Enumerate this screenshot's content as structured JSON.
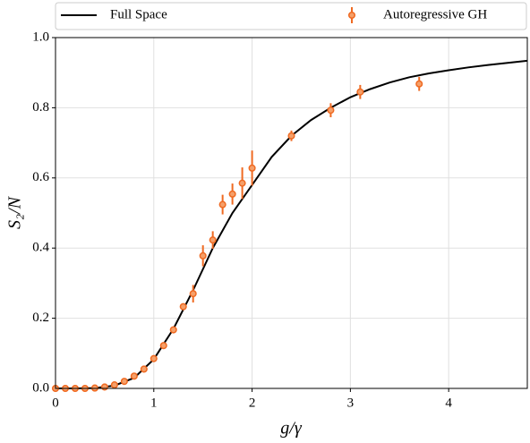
{
  "chart_data": {
    "type": "line",
    "xlabel": "g/γ",
    "ylabel": "S₂/N",
    "xlim": [
      0,
      4.8
    ],
    "ylim": [
      0,
      1.0
    ],
    "xticks": [
      0,
      1,
      2,
      3,
      4
    ],
    "yticks": [
      {
        "value": 0,
        "label": "0.0"
      },
      {
        "value": 0.2,
        "label": "0.2"
      },
      {
        "value": 0.4,
        "label": "0.4"
      },
      {
        "value": 0.6,
        "label": "0.6"
      },
      {
        "value": 0.8,
        "label": "0.8"
      },
      {
        "value": 1.0,
        "label": "1.0"
      }
    ],
    "grid": true,
    "legend": "top",
    "series": [
      {
        "name": "Full Space",
        "color": "#000000",
        "kind": "line",
        "x": [
          0,
          0.2,
          0.4,
          0.6,
          0.8,
          1.0,
          1.2,
          1.4,
          1.6,
          1.8,
          2.0,
          2.2,
          2.4,
          2.6,
          2.8,
          3.0,
          3.2,
          3.4,
          3.6,
          3.8,
          4.0,
          4.2,
          4.4,
          4.6,
          4.8
        ],
        "values": [
          0,
          0,
          0.001,
          0.008,
          0.03,
          0.083,
          0.17,
          0.28,
          0.4,
          0.5,
          0.58,
          0.66,
          0.72,
          0.765,
          0.8,
          0.83,
          0.853,
          0.872,
          0.887,
          0.898,
          0.907,
          0.915,
          0.922,
          0.928,
          0.934
        ]
      },
      {
        "name": "Autoregressive GH",
        "color": "#ef6a22",
        "kind": "errorbar",
        "x": [
          0,
          0.1,
          0.2,
          0.3,
          0.4,
          0.5,
          0.6,
          0.7,
          0.8,
          0.9,
          1.0,
          1.1,
          1.2,
          1.3,
          1.4,
          1.5,
          1.6,
          1.7,
          1.8,
          1.9,
          2.0,
          2.4,
          2.8,
          3.1,
          3.7
        ],
        "values": [
          0,
          0,
          0,
          0,
          0.001,
          0.004,
          0.01,
          0.02,
          0.035,
          0.055,
          0.085,
          0.122,
          0.167,
          0.233,
          0.27,
          0.378,
          0.423,
          0.524,
          0.554,
          0.585,
          0.628,
          0.72,
          0.793,
          0.845,
          0.868
        ],
        "errors": [
          0.002,
          0.002,
          0.002,
          0.002,
          0.002,
          0.003,
          0.003,
          0.003,
          0.004,
          0.005,
          0.006,
          0.007,
          0.008,
          0.008,
          0.025,
          0.03,
          0.025,
          0.028,
          0.03,
          0.045,
          0.05,
          0.015,
          0.02,
          0.02,
          0.02
        ]
      }
    ]
  }
}
